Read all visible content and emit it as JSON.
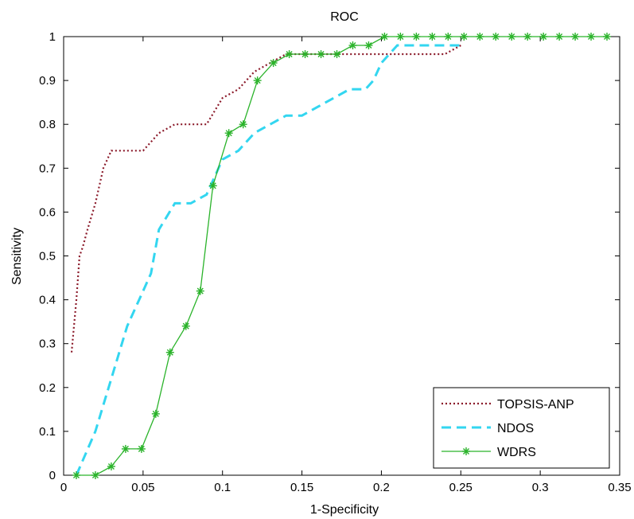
{
  "chart_data": {
    "type": "line",
    "title": "ROC",
    "xlabel": "1-Specificity",
    "ylabel": "Sensitivity",
    "xlim": [
      0,
      0.35
    ],
    "ylim": [
      0,
      1
    ],
    "xticks": [
      0,
      0.05,
      0.1,
      0.15,
      0.2,
      0.25,
      0.3,
      0.35
    ],
    "xtick_labels": [
      "0",
      "0.05",
      "0.1",
      "0.15",
      "0.2",
      "0.25",
      "0.3",
      "0.35"
    ],
    "yticks": [
      0,
      0.1,
      0.2,
      0.3,
      0.4,
      0.5,
      0.6,
      0.7,
      0.8,
      0.9,
      1
    ],
    "ytick_labels": [
      "0",
      "0.1",
      "0.2",
      "0.3",
      "0.4",
      "0.5",
      "0.6",
      "0.7",
      "0.8",
      "0.9",
      "1"
    ],
    "grid": false,
    "legend_position": "bottom-right",
    "series": [
      {
        "name": "TOPSIS-ANP",
        "color": "#8b1a2a",
        "style": "dotted",
        "x": [
          0.005,
          0.008,
          0.01,
          0.012,
          0.015,
          0.02,
          0.025,
          0.03,
          0.033,
          0.04,
          0.05,
          0.06,
          0.07,
          0.08,
          0.09,
          0.1,
          0.11,
          0.12,
          0.13,
          0.14,
          0.15,
          0.2,
          0.24,
          0.25
        ],
        "y": [
          0.28,
          0.4,
          0.5,
          0.52,
          0.56,
          0.62,
          0.7,
          0.74,
          0.74,
          0.74,
          0.74,
          0.78,
          0.8,
          0.8,
          0.8,
          0.86,
          0.88,
          0.92,
          0.94,
          0.96,
          0.96,
          0.96,
          0.96,
          0.98
        ]
      },
      {
        "name": "NDOS",
        "color": "#33d6f0",
        "style": "dashed",
        "x": [
          0.008,
          0.02,
          0.03,
          0.04,
          0.05,
          0.055,
          0.06,
          0.07,
          0.08,
          0.09,
          0.1,
          0.11,
          0.12,
          0.13,
          0.14,
          0.15,
          0.16,
          0.17,
          0.18,
          0.19,
          0.195,
          0.2,
          0.21,
          0.22,
          0.24,
          0.25
        ],
        "y": [
          0,
          0.1,
          0.22,
          0.34,
          0.42,
          0.46,
          0.56,
          0.62,
          0.62,
          0.64,
          0.72,
          0.74,
          0.78,
          0.8,
          0.82,
          0.82,
          0.84,
          0.86,
          0.88,
          0.88,
          0.9,
          0.94,
          0.98,
          0.98,
          0.98,
          0.98
        ]
      },
      {
        "name": "WDRS",
        "color": "#2ab32a",
        "style": "solid",
        "marker": "star",
        "x": [
          0.008,
          0.02,
          0.03,
          0.039,
          0.049,
          0.058,
          0.067,
          0.077,
          0.086,
          0.094,
          0.104,
          0.113,
          0.122,
          0.132,
          0.142,
          0.152,
          0.162,
          0.172,
          0.182,
          0.192,
          0.202,
          0.212,
          0.222,
          0.232,
          0.242,
          0.252,
          0.262,
          0.272,
          0.282,
          0.292,
          0.302,
          0.312,
          0.322,
          0.332,
          0.342
        ],
        "y": [
          0,
          0,
          0.02,
          0.06,
          0.06,
          0.14,
          0.28,
          0.34,
          0.42,
          0.66,
          0.78,
          0.8,
          0.9,
          0.94,
          0.96,
          0.96,
          0.96,
          0.96,
          0.98,
          0.98,
          1,
          1,
          1,
          1,
          1,
          1,
          1,
          1,
          1,
          1,
          1,
          1,
          1,
          1,
          1
        ]
      }
    ]
  }
}
